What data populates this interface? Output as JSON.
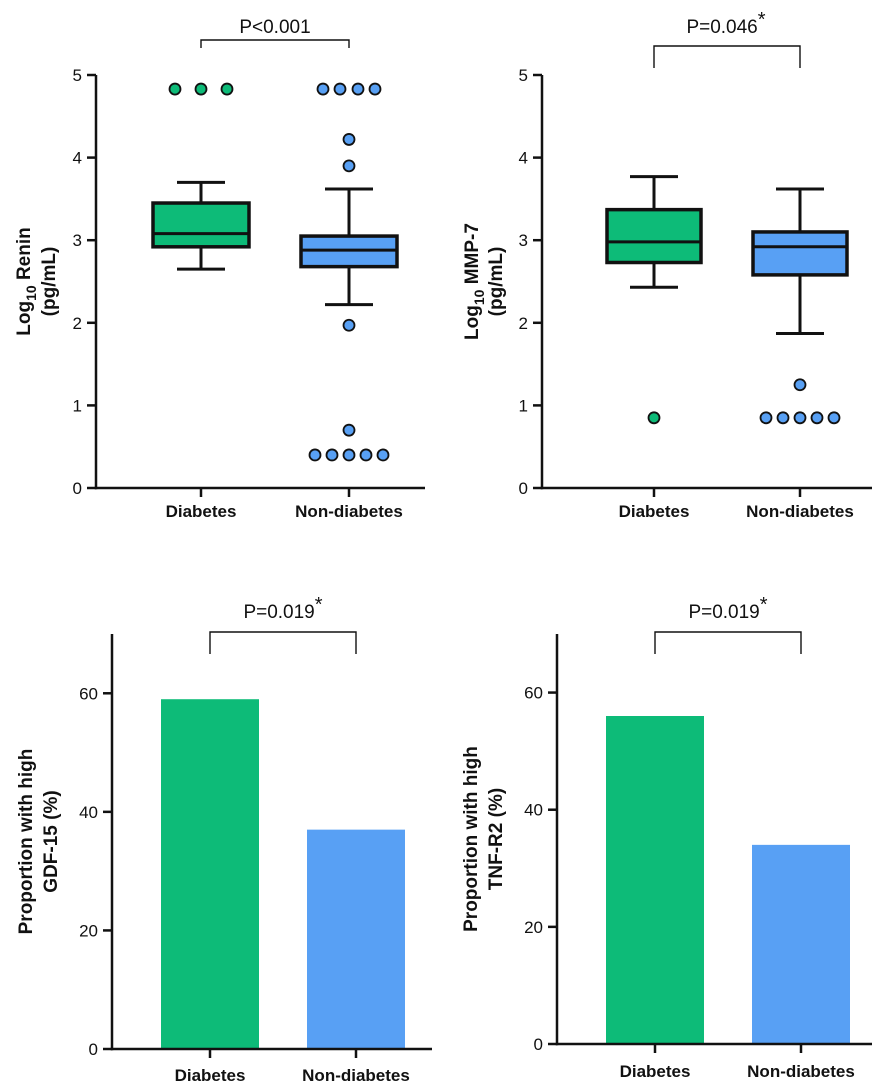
{
  "chart_data": [
    {
      "id": "renin",
      "type": "box",
      "ylabel_pre": "Log",
      "ylabel_sub": "10",
      "ylabel_post": " Renin",
      "ylabel_line2": "(pg/mL)",
      "ylim": [
        0,
        5
      ],
      "yticks": [
        "0",
        "1",
        "2",
        "3",
        "4",
        "5"
      ],
      "categories": [
        "Diabetes",
        "Non-diabetes"
      ],
      "colors": [
        "#0DBB78",
        "#58A0F4"
      ],
      "annotation": {
        "main": "P<0.001",
        "star": ""
      },
      "boxes": [
        {
          "q1": 2.92,
          "median": 3.08,
          "q3": 3.45,
          "whisker_low": 2.65,
          "whisker_high": 3.7,
          "outliers": [
            [
              -0.26,
              4.83
            ],
            [
              0.0,
              4.83
            ],
            [
              0.26,
              4.83
            ]
          ]
        },
        {
          "q1": 2.68,
          "median": 2.88,
          "q3": 3.05,
          "whisker_low": 2.22,
          "whisker_high": 3.62,
          "outliers": [
            [
              -0.26,
              4.83
            ],
            [
              -0.09,
              4.83
            ],
            [
              0.09,
              4.83
            ],
            [
              0.26,
              4.83
            ],
            [
              0.0,
              4.22
            ],
            [
              0.0,
              3.9
            ],
            [
              0.0,
              1.97
            ],
            [
              0.0,
              0.7
            ],
            [
              -0.34,
              0.4
            ],
            [
              -0.17,
              0.4
            ],
            [
              0.0,
              0.4
            ],
            [
              0.17,
              0.4
            ],
            [
              0.34,
              0.4
            ]
          ]
        }
      ]
    },
    {
      "id": "mmp7",
      "type": "box",
      "ylabel_pre": "Log",
      "ylabel_sub": "10",
      "ylabel_post": " MMP-7",
      "ylabel_line2": "(pg/mL)",
      "ylim": [
        0,
        5
      ],
      "yticks": [
        "0",
        "1",
        "2",
        "3",
        "4",
        "5"
      ],
      "categories": [
        "Diabetes",
        "Non-diabetes"
      ],
      "colors": [
        "#0DBB78",
        "#58A0F4"
      ],
      "annotation": {
        "main": "P=0.046",
        "star": "*"
      },
      "boxes": [
        {
          "q1": 2.73,
          "median": 2.98,
          "q3": 3.37,
          "whisker_low": 2.43,
          "whisker_high": 3.77,
          "outliers": [
            [
              0.0,
              0.85
            ]
          ]
        },
        {
          "q1": 2.58,
          "median": 2.92,
          "q3": 3.1,
          "whisker_low": 1.87,
          "whisker_high": 3.62,
          "outliers": [
            [
              0.0,
              1.25
            ],
            [
              -0.34,
              0.85
            ],
            [
              -0.17,
              0.85
            ],
            [
              0.0,
              0.85
            ],
            [
              0.17,
              0.85
            ],
            [
              0.34,
              0.85
            ]
          ]
        }
      ]
    },
    {
      "id": "gdf15",
      "type": "bar",
      "ylabel_line1": "Proportion with high",
      "ylabel_line2": "GDF-15 (%)",
      "ylim": [
        0,
        70
      ],
      "yticks": [
        "0",
        "20",
        "40",
        "60"
      ],
      "categories": [
        "Diabetes",
        "Non-diabetes"
      ],
      "colors": [
        "#0DBB78",
        "#58A0F4"
      ],
      "values": [
        59,
        37
      ],
      "annotation": {
        "main": "P=0.019",
        "star": "*"
      }
    },
    {
      "id": "tnfr2",
      "type": "bar",
      "ylabel_line1": "Proportion with high",
      "ylabel_line2": "TNF-R2 (%)",
      "ylim": [
        0,
        70
      ],
      "yticks": [
        "0",
        "20",
        "40",
        "60"
      ],
      "categories": [
        "Diabetes",
        "Non-diabetes"
      ],
      "colors": [
        "#0DBB78",
        "#58A0F4"
      ],
      "values": [
        56,
        34
      ],
      "annotation": {
        "main": "P=0.019",
        "star": "*"
      }
    }
  ]
}
